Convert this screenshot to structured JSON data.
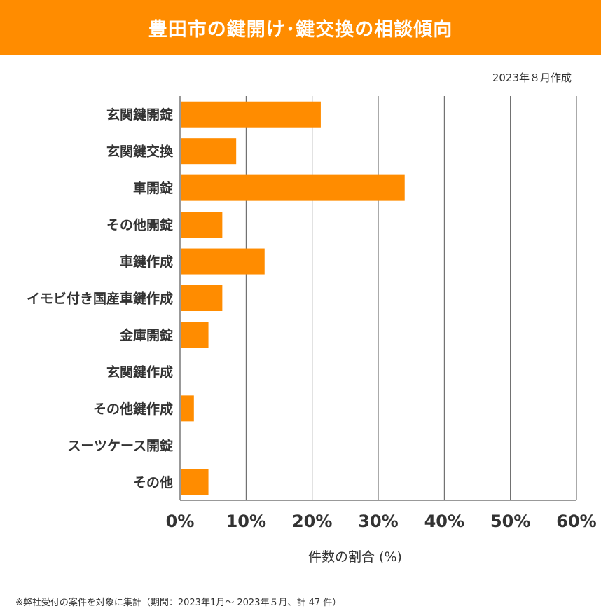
{
  "header": {
    "title": "豊田市の鍵開け･鍵交換の相談傾向"
  },
  "created_note": "2023年８月作成",
  "footnote": "※弊社受付の案件を対象に集計（期間：2023年1月～ 2023年５月、計 47 件）",
  "colors": {
    "bar": "#FF8C00",
    "header": "#FF8C00",
    "grid": "#555555"
  },
  "chart_data": {
    "type": "bar",
    "orientation": "horizontal",
    "categories": [
      "玄関鍵開錠",
      "玄関鍵交換",
      "車開錠",
      "その他開錠",
      "車鍵作成",
      "イモビ付き国産車鍵作成",
      "金庫開錠",
      "玄関鍵作成",
      "その他鍵作成",
      "スーツケース開錠",
      "その他"
    ],
    "values": [
      21.3,
      8.5,
      34.0,
      6.4,
      12.8,
      6.4,
      4.3,
      0,
      2.1,
      0,
      4.3
    ],
    "xlabel": "件数の割合 (%)",
    "xlim": [
      0,
      60
    ],
    "xticks": [
      "0%",
      "10%",
      "20%",
      "30%",
      "40%",
      "50%",
      "60%"
    ],
    "grid": true
  }
}
